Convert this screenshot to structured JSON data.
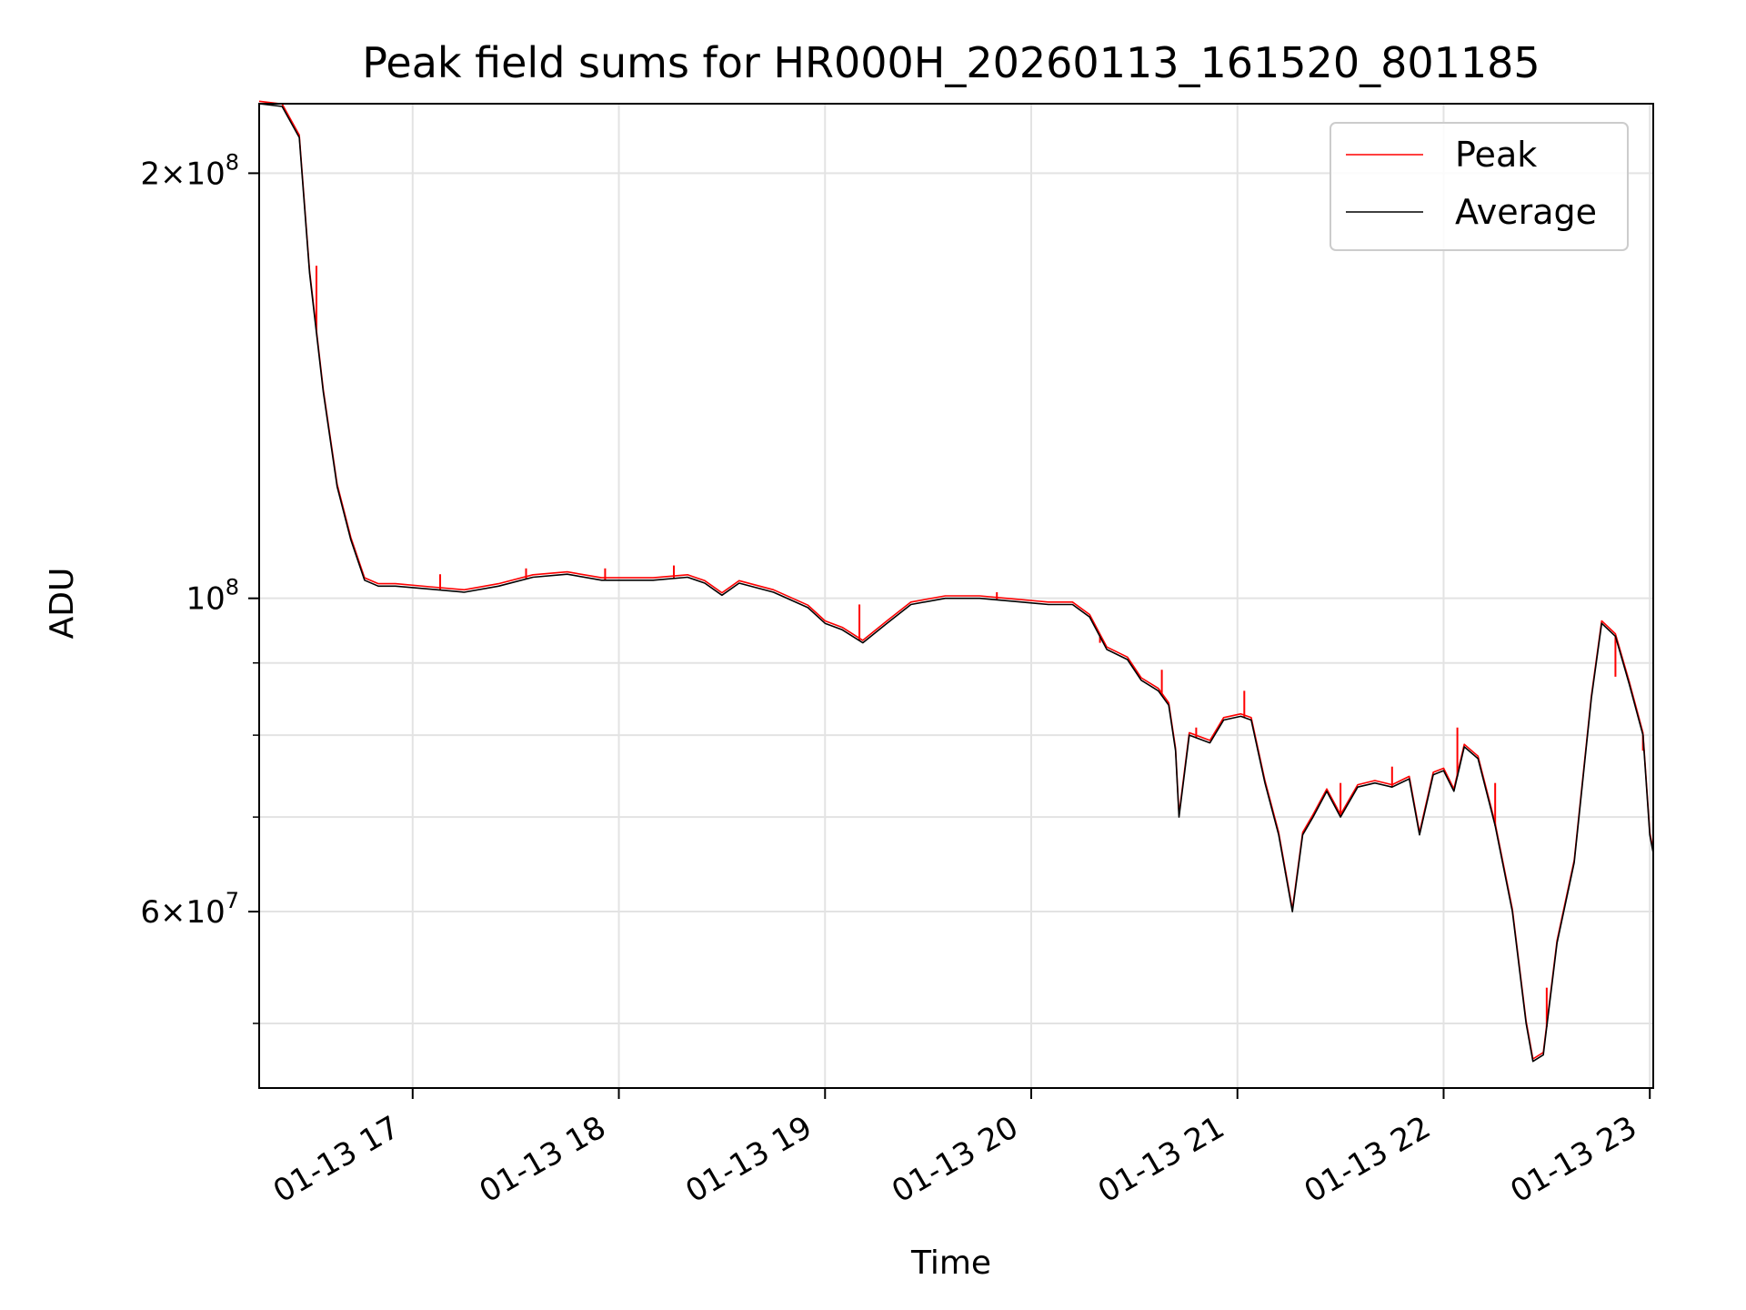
{
  "chart_data": {
    "type": "line",
    "title": "Peak field sums for HR000H_20260113_161520_801185",
    "xlabel": "Time",
    "ylabel": "ADU",
    "x_axis": {
      "type": "datetime",
      "range": [
        "2026-01-13T16:15:20",
        "2026-01-13T23:01:00"
      ],
      "ticks": [
        "01-13 17",
        "01-13 18",
        "01-13 19",
        "01-13 20",
        "01-13 21",
        "01-13 22",
        "01-13 23"
      ],
      "tick_times": [
        "2026-01-13T17:00",
        "2026-01-13T18:00",
        "2026-01-13T19:00",
        "2026-01-13T20:00",
        "2026-01-13T21:00",
        "2026-01-13T22:00",
        "2026-01-13T23:00"
      ],
      "tick_rotation_deg": 30
    },
    "y_axis": {
      "scale": "log",
      "range": [
        45000000,
        224000000
      ],
      "major_ticks": [
        {
          "value": 60000000,
          "mantissa": "6",
          "exponent": "7"
        },
        {
          "value": 100000000,
          "mantissa": "",
          "exponent": "8"
        },
        {
          "value": 200000000,
          "mantissa": "2",
          "exponent": "8"
        }
      ],
      "minor_gridlines": [
        50000000,
        70000000,
        80000000,
        90000000
      ]
    },
    "grid": true,
    "legend": {
      "position": "top-right"
    },
    "series": [
      {
        "name": "Peak",
        "color": "#ff0000",
        "style": "peak-spikes",
        "spikes": [
          {
            "x": "2026-01-13T16:32:00",
            "y": 172000000
          },
          {
            "x": "2026-01-13T17:08:00",
            "y": 104000000
          },
          {
            "x": "2026-01-13T17:33:00",
            "y": 105000000
          },
          {
            "x": "2026-01-13T17:56:00",
            "y": 105000000
          },
          {
            "x": "2026-01-13T18:16:00",
            "y": 105500000
          },
          {
            "x": "2026-01-13T19:10:00",
            "y": 99000000
          },
          {
            "x": "2026-01-13T19:50:00",
            "y": 101000000
          },
          {
            "x": "2026-01-13T20:20:00",
            "y": 93000000
          },
          {
            "x": "2026-01-13T20:38:00",
            "y": 89000000
          },
          {
            "x": "2026-01-13T20:48:00",
            "y": 81000000
          },
          {
            "x": "2026-01-13T21:02:00",
            "y": 86000000
          },
          {
            "x": "2026-01-13T21:14:00",
            "y": 64000000
          },
          {
            "x": "2026-01-13T21:30:00",
            "y": 74000000
          },
          {
            "x": "2026-01-13T21:45:00",
            "y": 76000000
          },
          {
            "x": "2026-01-13T22:04:00",
            "y": 81000000
          },
          {
            "x": "2026-01-13T22:15:00",
            "y": 74000000
          },
          {
            "x": "2026-01-13T22:30:00",
            "y": 53000000
          },
          {
            "x": "2026-01-13T22:38:00",
            "y": 65000000
          },
          {
            "x": "2026-01-13T22:50:00",
            "y": 88000000
          },
          {
            "x": "2026-01-13T22:58:00",
            "y": 78000000
          }
        ]
      },
      {
        "name": "Average",
        "color": "#000000",
        "x": [
          "2026-01-13T16:15:20",
          "2026-01-13T16:22:00",
          "2026-01-13T16:27:00",
          "2026-01-13T16:30:00",
          "2026-01-13T16:34:00",
          "2026-01-13T16:38:00",
          "2026-01-13T16:42:00",
          "2026-01-13T16:46:00",
          "2026-01-13T16:50:00",
          "2026-01-13T16:55:00",
          "2026-01-13T17:05:00",
          "2026-01-13T17:15:00",
          "2026-01-13T17:25:00",
          "2026-01-13T17:35:00",
          "2026-01-13T17:45:00",
          "2026-01-13T17:55:00",
          "2026-01-13T18:00:00",
          "2026-01-13T18:10:00",
          "2026-01-13T18:20:00",
          "2026-01-13T18:25:00",
          "2026-01-13T18:30:00",
          "2026-01-13T18:35:00",
          "2026-01-13T18:45:00",
          "2026-01-13T18:55:00",
          "2026-01-13T19:00:00",
          "2026-01-13T19:05:00",
          "2026-01-13T19:11:00",
          "2026-01-13T19:18:00",
          "2026-01-13T19:25:00",
          "2026-01-13T19:35:00",
          "2026-01-13T19:45:00",
          "2026-01-13T19:55:00",
          "2026-01-13T20:05:00",
          "2026-01-13T20:12:00",
          "2026-01-13T20:17:00",
          "2026-01-13T20:22:00",
          "2026-01-13T20:28:00",
          "2026-01-13T20:32:00",
          "2026-01-13T20:37:00",
          "2026-01-13T20:40:00",
          "2026-01-13T20:42:00",
          "2026-01-13T20:43:00",
          "2026-01-13T20:46:00",
          "2026-01-13T20:52:00",
          "2026-01-13T20:56:00",
          "2026-01-13T21:01:00",
          "2026-01-13T21:04:00",
          "2026-01-13T21:08:00",
          "2026-01-13T21:12:00",
          "2026-01-13T21:16:00",
          "2026-01-13T21:19:00",
          "2026-01-13T21:22:00",
          "2026-01-13T21:26:00",
          "2026-01-13T21:30:00",
          "2026-01-13T21:35:00",
          "2026-01-13T21:40:00",
          "2026-01-13T21:45:00",
          "2026-01-13T21:50:00",
          "2026-01-13T21:53:00",
          "2026-01-13T21:57:00",
          "2026-01-13T22:00:00",
          "2026-01-13T22:03:00",
          "2026-01-13T22:06:00",
          "2026-01-13T22:10:00",
          "2026-01-13T22:15:00",
          "2026-01-13T22:20:00",
          "2026-01-13T22:24:00",
          "2026-01-13T22:26:00",
          "2026-01-13T22:29:00",
          "2026-01-13T22:33:00",
          "2026-01-13T22:38:00",
          "2026-01-13T22:43:00",
          "2026-01-13T22:46:00",
          "2026-01-13T22:50:00",
          "2026-01-13T22:54:00",
          "2026-01-13T22:58:00",
          "2026-01-13T23:00:00",
          "2026-01-13T23:01:00"
        ],
        "values": [
          224000000,
          223000000,
          212000000,
          170000000,
          140000000,
          120000000,
          110000000,
          103000000,
          102000000,
          102000000,
          101500000,
          101000000,
          102000000,
          103500000,
          104000000,
          103000000,
          103000000,
          103000000,
          103500000,
          102500000,
          100500000,
          102500000,
          101000000,
          98500000,
          96000000,
          95000000,
          93000000,
          96000000,
          99000000,
          100000000,
          100000000,
          99500000,
          99000000,
          99000000,
          97000000,
          92000000,
          90500000,
          87500000,
          86000000,
          84000000,
          78000000,
          70000000,
          80000000,
          79000000,
          82000000,
          82500000,
          82000000,
          74000000,
          68000000,
          60000000,
          68000000,
          70000000,
          73000000,
          70000000,
          73500000,
          74000000,
          73500000,
          74500000,
          68000000,
          75000000,
          75500000,
          73000000,
          78500000,
          77000000,
          69000000,
          60000000,
          50000000,
          47000000,
          47500000,
          57000000,
          65000000,
          85000000,
          96000000,
          94000000,
          87000000,
          80000000,
          68000000,
          66000000
        ]
      }
    ]
  }
}
